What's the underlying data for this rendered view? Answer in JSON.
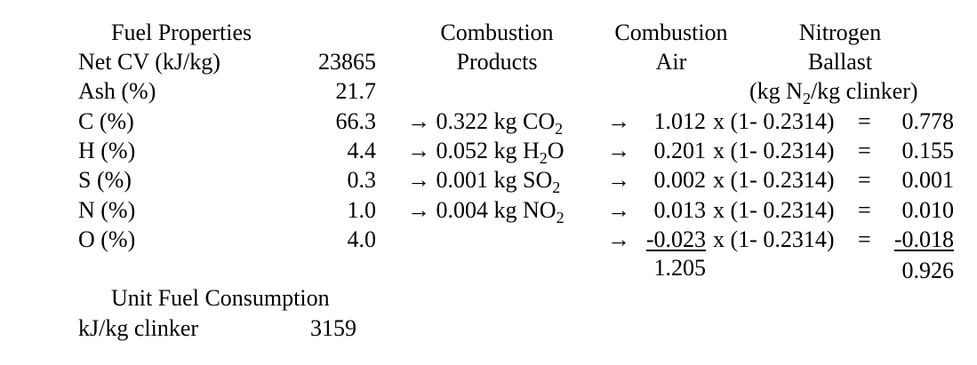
{
  "fuel": {
    "title": "Fuel Properties",
    "rows": [
      {
        "label": "Net CV (kJ/kg)",
        "value": "23865"
      },
      {
        "label": "Ash (%)",
        "value": "21.7"
      },
      {
        "label": "C (%)",
        "value": "66.3"
      },
      {
        "label": "H (%)",
        "value": "4.4"
      },
      {
        "label": "S (%)",
        "value": "0.3"
      },
      {
        "label": "N (%)",
        "value": "1.0"
      },
      {
        "label": "O (%)",
        "value": "4.0"
      }
    ]
  },
  "products": {
    "header1": "Combustion",
    "header2": "Products",
    "rows": [
      {
        "prefix": "→ 0.322 kg CO",
        "sub": "2",
        "suffix": ""
      },
      {
        "prefix": "→ 0.052 kg H",
        "sub": "2",
        "suffix": "O"
      },
      {
        "prefix": "→ 0.001 kg SO",
        "sub": "2",
        "suffix": ""
      },
      {
        "prefix": "→ 0.004 kg NO",
        "sub": "2",
        "suffix": ""
      }
    ]
  },
  "air": {
    "header1": "Combustion",
    "header2": "Air",
    "arrow": "→",
    "factor": "x (1- 0.2314)",
    "equals": "=",
    "rows": [
      "1.012",
      "0.201",
      "0.002",
      "0.013",
      "-0.023"
    ],
    "total": "1.205"
  },
  "ballast": {
    "header1": "Nitrogen",
    "header2": "Ballast",
    "unit_prefix": "(kg N",
    "unit_sub": "2",
    "unit_suffix": "/kg clinker)",
    "rows": [
      "0.778",
      "0.155",
      "0.001",
      "0.010",
      "-0.018"
    ],
    "total": "0.926"
  },
  "consumption": {
    "title": "Unit Fuel Consumption",
    "label": "kJ/kg clinker",
    "value": "3159"
  }
}
